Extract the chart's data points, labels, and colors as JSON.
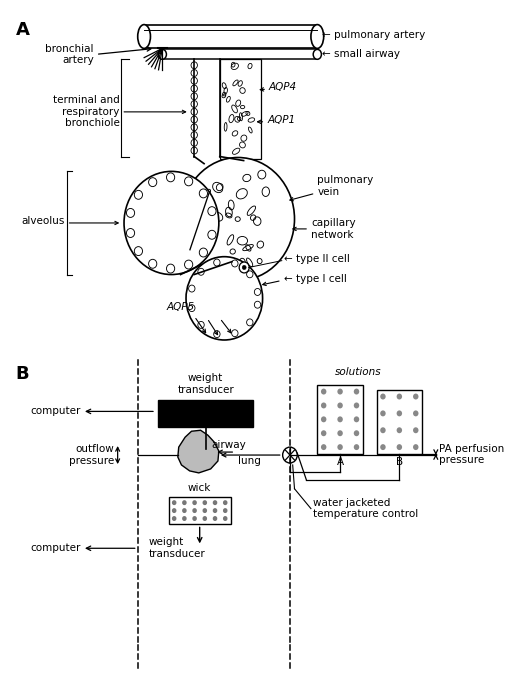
{
  "panel_A_label": "A",
  "panel_B_label": "B",
  "bg_color": "#ffffff",
  "line_color": "#000000",
  "labels": {
    "bronchial_artery": "bronchial\nartery",
    "pulmonary_artery": "pulmonary artery",
    "small_airway": "small airway",
    "terminal_bronchiole": "terminal and\nrespiratory\nbronchiole",
    "AQP4": "AQP4",
    "AQP1": "AQP1",
    "pulmonary_vein": "pulmonary\nvein",
    "alveolus": "alveolus",
    "capillary_network": "capillary\nnetwork",
    "AQP5": "AQP5",
    "type_II_cell": "type II cell",
    "type_I_cell": "type I cell",
    "weight_transducer_top": "weight\ntransducer",
    "computer_top": "computer",
    "airway": "airway",
    "outflow_pressure": "outflow\npressure",
    "lung": "lung",
    "wick": "wick",
    "solutions": "solutions",
    "sol_A": "A",
    "sol_B": "B",
    "PA_perfusion": "PA perfusion\npressure",
    "water_jacketed": "water jacketed\ntemperature control",
    "computer_bottom": "computer",
    "weight_transducer_bottom": "weight\ntransducer"
  }
}
